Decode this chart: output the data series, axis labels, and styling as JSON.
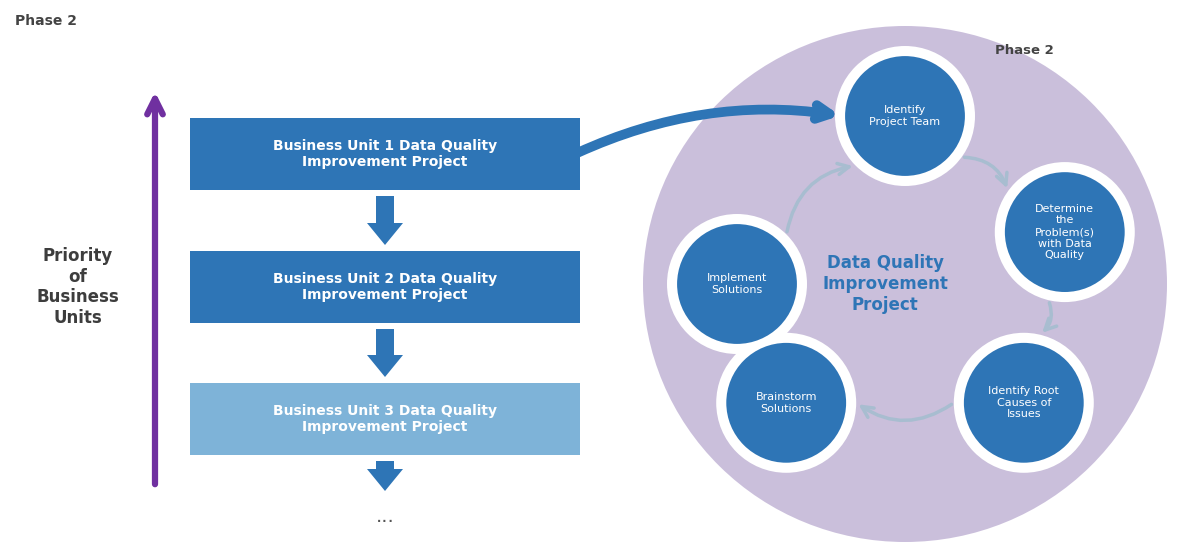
{
  "title_left": "Phase 2",
  "title_right": "Phase 2",
  "priority_label": "Priority\nof\nBusiness\nUnits",
  "boxes": [
    {
      "text": "Business Unit 1 Data Quality\nImprovement Project",
      "color": "#2E75B6"
    },
    {
      "text": "Business Unit 2 Data Quality\nImprovement Project",
      "color": "#2E75B6"
    },
    {
      "text": "Business Unit 3 Data Quality\nImprovement Project",
      "color": "#7EB3D8"
    }
  ],
  "circle_bg_color": "#C5B8D8",
  "circle_label": "Data Quality\nImprovement\nProject",
  "circle_label_color": "#2E75B6",
  "cycle_nodes": [
    {
      "text": "Identify\nProject Team"
    },
    {
      "text": "Determine\nthe\nProblem(s)\nwith Data\nQuality"
    },
    {
      "text": "Identify Root\nCauses of\nIssues"
    },
    {
      "text": "Brainstorm\nSolutions"
    },
    {
      "text": "Implement\nSolutions"
    }
  ],
  "node_color": "#2E75B6",
  "arrow_color": "#A8BDD0",
  "connector_arrow_color": "#2E75B6",
  "down_arrow_color": "#2E75B6",
  "dots_text": "...",
  "purple_arrow_color": "#7030A0",
  "bg_color": "#FFFFFF"
}
